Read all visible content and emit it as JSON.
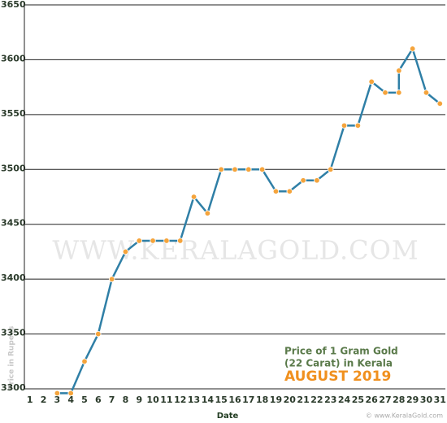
{
  "chart_data": {
    "type": "line",
    "x": [
      1,
      2,
      3,
      4,
      5,
      6,
      7,
      8,
      9,
      10,
      11,
      12,
      13,
      14,
      15,
      16,
      17,
      18,
      19,
      20,
      21,
      22,
      23,
      24,
      25,
      26,
      27,
      28,
      28,
      29,
      30,
      31
    ],
    "series": [
      {
        "color": "#2f7fa6",
        "values": [
          null,
          null,
          3296,
          3296,
          3325,
          3350,
          3400,
          3425,
          3435,
          3435,
          3435,
          3435,
          3475,
          3460,
          3500,
          3500,
          3500,
          3500,
          3480,
          3480,
          3490,
          3490,
          3500,
          3540,
          3540,
          3580,
          3570,
          3570,
          3590,
          3610,
          3570,
          3560
        ]
      }
    ],
    "xlim": [
      0.6,
      31.4
    ],
    "xticks": [
      1,
      2,
      3,
      4,
      5,
      6,
      7,
      8,
      9,
      10,
      11,
      12,
      13,
      14,
      15,
      16,
      17,
      18,
      19,
      20,
      21,
      22,
      23,
      24,
      25,
      26,
      27,
      28,
      29,
      30,
      31
    ],
    "ylim": [
      3300,
      3650
    ],
    "yticks": [
      3300,
      3350,
      3400,
      3450,
      3500,
      3550,
      3600,
      3650
    ],
    "grid": true,
    "x_label": "Date",
    "y_label": "Price in Rupees",
    "annotations": [
      "Price of 1 Gram Gold",
      "(22 Carat) in Kerala",
      "AUGUST 2019"
    ],
    "watermark": "WWW.KERALAGOLD.COM",
    "credit": "© www.KeralaGold.com"
  }
}
